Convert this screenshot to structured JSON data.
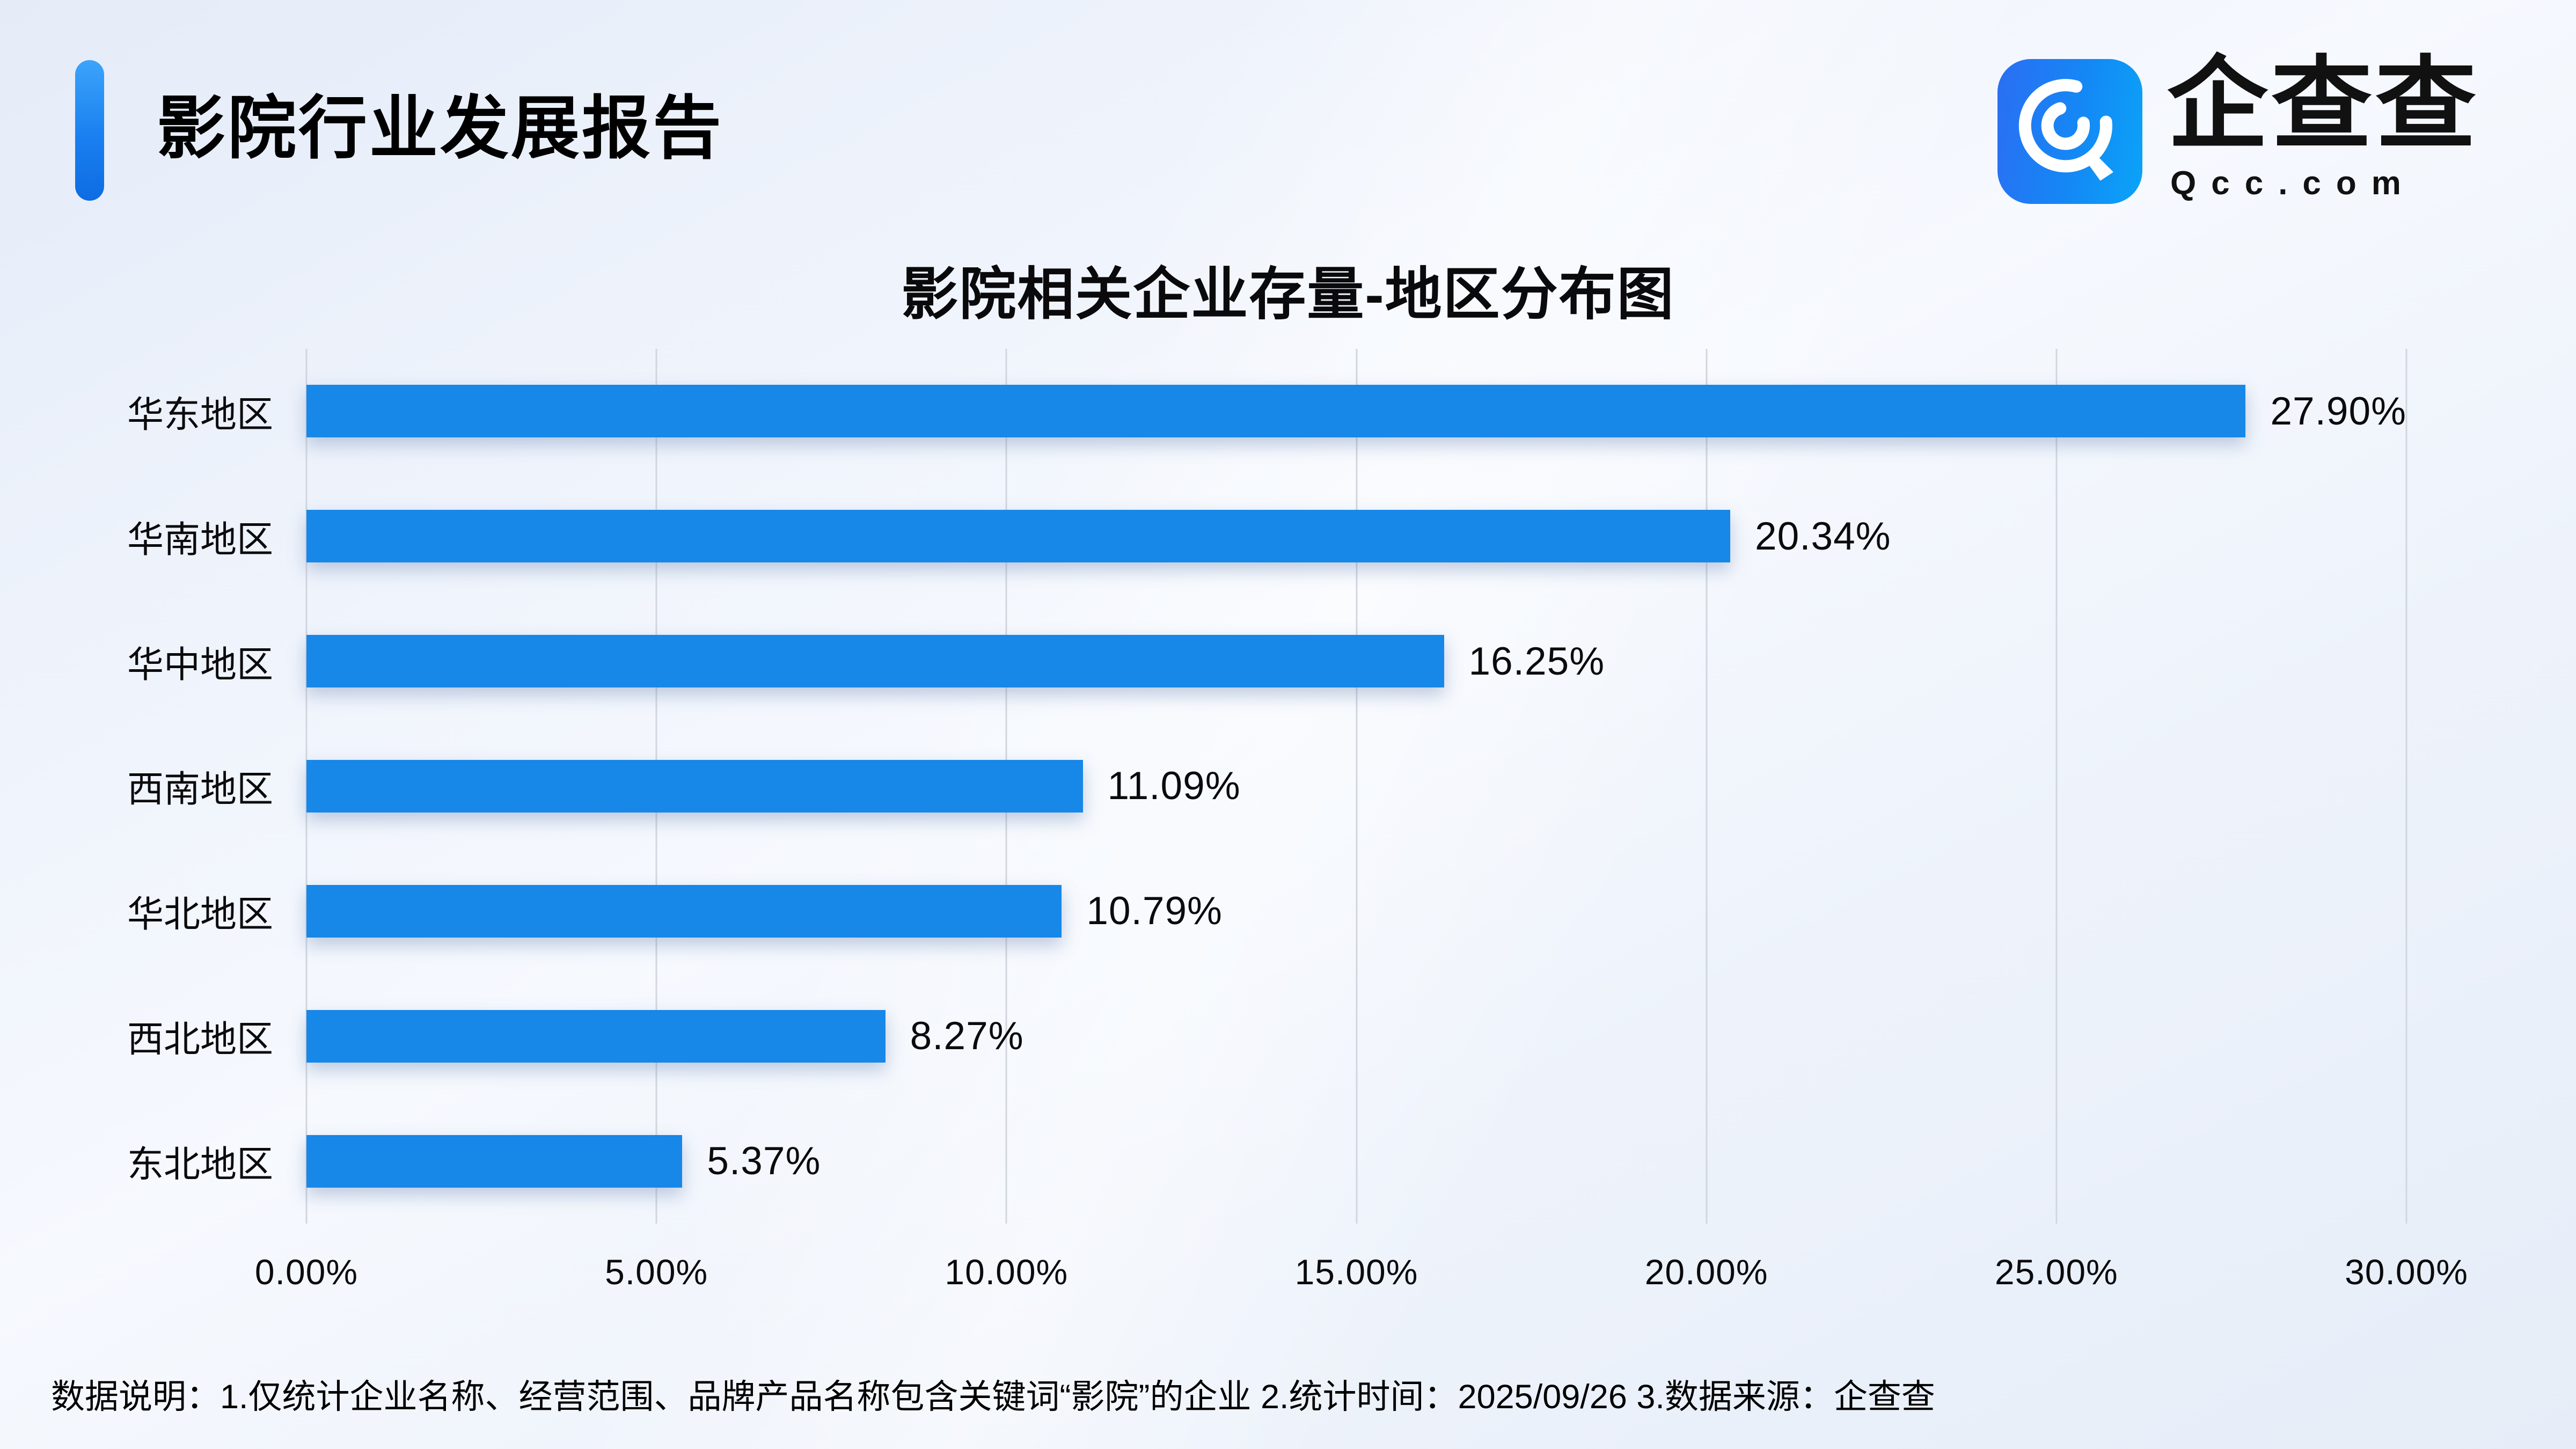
{
  "header": {
    "title": "影院行业发展报告",
    "accent_color_top": "#3ba4fa",
    "accent_color_bottom": "#0d6ce2"
  },
  "logo": {
    "brand_name": "企查查",
    "domain": "Qcc.com",
    "icon": "qcc-magnifier-icon",
    "icon_gradient_left": "#2b6ef3",
    "icon_gradient_right": "#0aa4f8"
  },
  "chart_data": {
    "type": "bar",
    "orientation": "horizontal",
    "title": "影院相关企业存量-地区分布图",
    "categories": [
      "华东地区",
      "华南地区",
      "华中地区",
      "西南地区",
      "华北地区",
      "西北地区",
      "东北地区"
    ],
    "values": [
      27.9,
      20.34,
      16.25,
      11.09,
      10.79,
      8.27,
      5.37
    ],
    "value_labels": [
      "27.90%",
      "20.34%",
      "16.25%",
      "11.09%",
      "10.79%",
      "8.27%",
      "5.37%"
    ],
    "x_ticks": [
      "0.00%",
      "5.00%",
      "10.00%",
      "15.00%",
      "20.00%",
      "25.00%",
      "30.00%"
    ],
    "xlim": [
      0,
      30
    ],
    "xlabel": "",
    "ylabel": "",
    "grid": "vertical-on",
    "legend": "none",
    "bar_color": "#1787e8",
    "gridline_color": "#d2d6de"
  },
  "footer": {
    "note": "数据说明：1.仅统计企业名称、经营范围、品牌产品名称包含关键词“影院”的企业  2.统计时间：2025/09/26  3.数据来源：企查查"
  }
}
